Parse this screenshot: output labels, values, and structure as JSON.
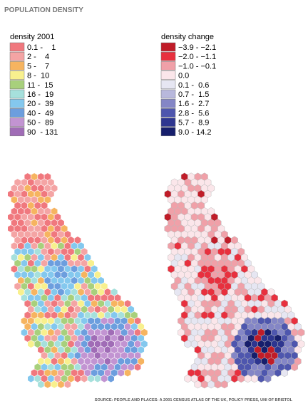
{
  "title": "POPULATION DENSITY",
  "legends": [
    {
      "title": "density 2001",
      "items": [
        {
          "label": "0.1 -    1",
          "color": "#f0787e"
        },
        {
          "label": "2 -    4",
          "color": "#f4a4a4"
        },
        {
          "label": "5 -    7",
          "color": "#f6b460"
        },
        {
          "label": "8 -  10",
          "color": "#f8f08e"
        },
        {
          "label": "11 -  15",
          "color": "#a8d07c"
        },
        {
          "label": "16 -  19",
          "color": "#a6e0dc"
        },
        {
          "label": "20 -  39",
          "color": "#84c8ee"
        },
        {
          "label": "40 -  49",
          "color": "#6c9ede"
        },
        {
          "label": "50 -  89",
          "color": "#c294d2"
        },
        {
          "label": "90  - 131",
          "color": "#a06cb6"
        }
      ]
    },
    {
      "title": "density change",
      "items": [
        {
          "label": "−3.9 - −2.1",
          "color": "#c01c28"
        },
        {
          "label": "−2.0 - −1.1",
          "color": "#e8303e"
        },
        {
          "label": "−1.0 - −0.1",
          "color": "#f0a0a8"
        },
        {
          "label": "0.0",
          "color": "#fbe6ea"
        },
        {
          "label": "0.1 -  0.6",
          "color": "#e6e6f2"
        },
        {
          "label": "0.7 -  1.5",
          "color": "#b8b8dc"
        },
        {
          "label": "1.6 -  2.7",
          "color": "#8486c6"
        },
        {
          "label": "2.8 -  5.6",
          "color": "#4e56ae"
        },
        {
          "label": "5.7 -  8.9",
          "color": "#2e3690"
        },
        {
          "label": "9.0 - 14.2",
          "color": "#161e6c"
        }
      ]
    }
  ],
  "source": "SOURCE: PEOPLE AND PLACES: A 2001 CENSUS ATLAS OF THE UK, POLICY PRESS, UNI OF BRISTOL"
}
